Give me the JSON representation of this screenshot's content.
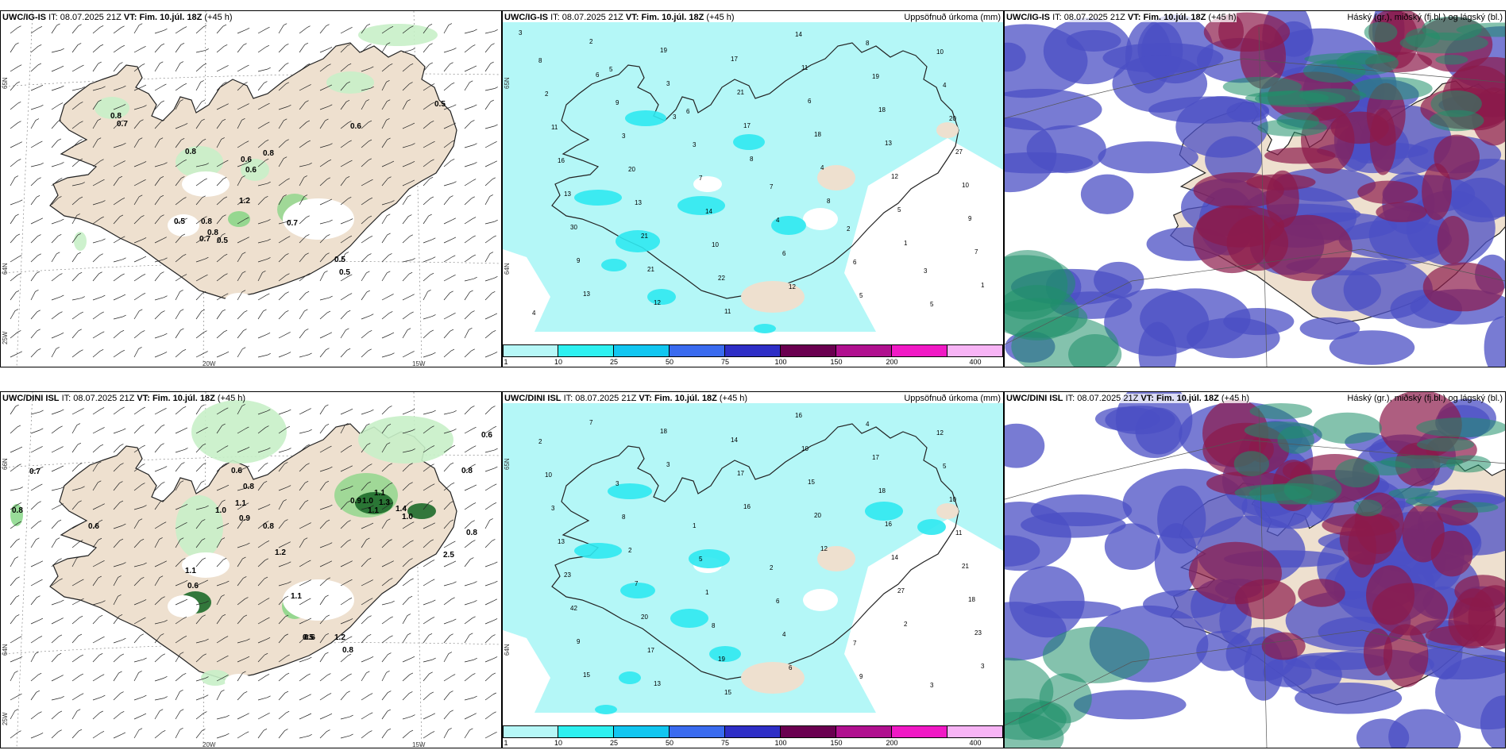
{
  "panels": [
    {
      "id": "p1",
      "model": "UWC/IG-IS",
      "it_label": "IT:",
      "it_value": "08.07.2025 21Z",
      "vt_label": "VT:",
      "vt_value": "Fim. 10.júl. 18Z",
      "lead": "(+45 h)",
      "title": "",
      "lon_ticks": [
        "20W",
        "15W"
      ],
      "lat_ticks": [
        "65N",
        "64N",
        "25W"
      ],
      "values": [
        "0.8",
        "0.7",
        "0.8",
        "0.6",
        "0.6",
        "0.8",
        "0.5",
        "0.6",
        "1.2",
        "0.5",
        "0.8",
        "0.8",
        "0.7",
        "0.5",
        "0.5",
        "0.5",
        "0.7"
      ]
    },
    {
      "id": "p2",
      "model": "UWC/IG-IS",
      "it_label": "IT:",
      "it_value": "08.07.2025 21Z",
      "vt_label": "VT:",
      "vt_value": "Fim. 10.júl. 18Z",
      "lead": "(+45 h)",
      "title": "Uppsöfnuð úrkoma (mm)",
      "lat_ticks": [
        "65N",
        "64N"
      ],
      "values": [
        "3",
        "6",
        "3",
        "8",
        "8",
        "1",
        "1",
        "2",
        "3",
        "17",
        "4",
        "5",
        "7",
        "13",
        "19",
        "21",
        "18",
        "12",
        "9",
        "9",
        "12",
        "17",
        "6",
        "13",
        "10",
        "30",
        "21",
        "11",
        "11",
        "18",
        "27",
        "13",
        "21",
        "22",
        "14",
        "19",
        "20",
        "16",
        "13",
        "10",
        "12",
        "8",
        "4",
        "11",
        "20",
        "14",
        "6",
        "5",
        "10",
        "2",
        "3",
        "7",
        "4",
        "6",
        "5",
        "8",
        "9",
        "3",
        "7",
        "2",
        "3",
        "4",
        "5",
        "6"
      ]
    },
    {
      "id": "p3",
      "model": "UWC/IG-IS",
      "it_label": "IT:",
      "it_value": "08.07.2025 21Z",
      "vt_label": "VT:",
      "vt_value": "Fim. 10.júl. 18Z",
      "lead": "(+45 h)",
      "title": "Háský (gr.), miðský (fj.bl.) og lágský (bl.)"
    },
    {
      "id": "p4",
      "model": "UWC/DINI ISL",
      "it_label": "IT:",
      "it_value": "08.07.2025 21Z",
      "vt_label": "VT:",
      "vt_value": "Fim. 10.júl. 18Z",
      "lead": "(+45 h)",
      "title": "",
      "lon_ticks": [
        "20W",
        "15W"
      ],
      "lat_ticks": [
        "66N",
        "64N",
        "25W"
      ],
      "values": [
        "0.6",
        "0.7",
        "0.8",
        "0.8",
        "0.6",
        "0.6",
        "0.8",
        "1.0",
        "1.1",
        "0.9",
        "0.8",
        "0.9",
        "1.0",
        "1.1",
        "1.1",
        "1.3",
        "1.1",
        "0.6",
        "1.2",
        "1.1",
        "0.5",
        "0.8",
        "1.2",
        "0.6",
        "0.8",
        "2.5",
        "1.4",
        "1.0"
      ]
    },
    {
      "id": "p5",
      "model": "UWC/DINI ISL",
      "it_label": "IT:",
      "it_value": "08.07.2025 21Z",
      "vt_label": "VT:",
      "vt_value": "Fim. 10.júl. 18Z",
      "lead": "(+45 h)",
      "title": "Uppsöfnuð úrkoma (mm)",
      "lat_ticks": [
        "65N",
        "64N"
      ],
      "values": [
        "2",
        "3",
        "7",
        "3",
        "16",
        "12",
        "27",
        "23",
        "15",
        "18",
        "17",
        "20",
        "14",
        "18",
        "9",
        "13",
        "14",
        "15",
        "16",
        "21",
        "42",
        "17",
        "15",
        "10",
        "18",
        "11",
        "23",
        "20",
        "19",
        "16",
        "17",
        "10",
        "13",
        "7",
        "8",
        "6",
        "4",
        "5",
        "3",
        "2",
        "1",
        "4",
        "9",
        "12",
        "10",
        "8",
        "5",
        "6",
        "7",
        "3",
        "2",
        "3",
        "1",
        "2"
      ]
    },
    {
      "id": "p6",
      "model": "UWC/DINI ISL",
      "it_label": "IT:",
      "it_value": "08.07.2025 21Z",
      "vt_label": "VT:",
      "vt_value": "Fim. 10.júl. 18Z",
      "lead": "(+45 h)",
      "title": "Háský (gr.), miðský (fj.bl.) og lágský (bl.)"
    }
  ],
  "colorbar": {
    "labels": [
      "1",
      "10",
      "25",
      "50",
      "75",
      "100",
      "150",
      "200",
      "400"
    ],
    "colors": [
      "#b6f7f7",
      "#2ef0f0",
      "#12c6f0",
      "#3a6bef",
      "#2e2ec6",
      "#6a0050",
      "#b0108f",
      "#f019c5",
      "#f7b4f5"
    ]
  },
  "colors": {
    "land": "#eee0cf",
    "precip_light": "#b4f7f7",
    "precip_mid": "#2fe8f0",
    "wind_green_light": "#c8f0c8",
    "wind_green_mid": "#7fd47f",
    "wind_green_dark": "#1d6b2a",
    "cloud_high": "#1f8f6a",
    "cloud_mid": "#8b1a4a",
    "cloud_low": "#4b4fc4"
  }
}
